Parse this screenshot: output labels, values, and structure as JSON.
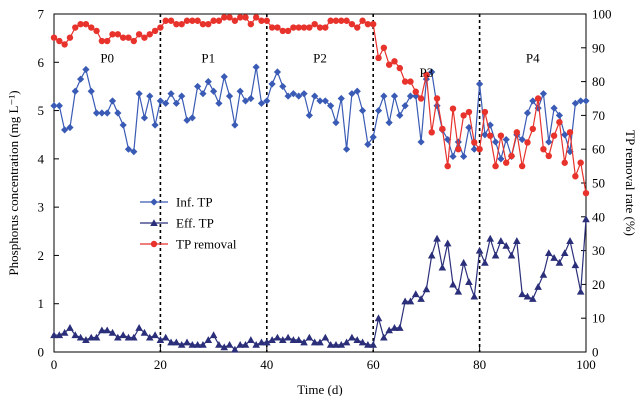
{
  "chart_data": {
    "type": "line",
    "xlabel": "Time (d)",
    "ylabel_left": "Phosphorus concentration (mg L⁻¹)",
    "ylabel_right": "TP removal rate (%)",
    "xlim": [
      0,
      100
    ],
    "ylim_left": [
      0,
      7
    ],
    "ylim_right": [
      0,
      100
    ],
    "x_ticks": [
      "0",
      "20",
      "40",
      "60",
      "80",
      "100"
    ],
    "y_ticks_left": [
      "0",
      "1",
      "2",
      "3",
      "4",
      "5",
      "6",
      "7"
    ],
    "y_ticks_right": [
      "0",
      "10",
      "20",
      "30",
      "40",
      "50",
      "60",
      "70",
      "80",
      "90",
      "100"
    ],
    "phase_dividers": [
      20,
      40,
      60,
      80
    ],
    "phase_labels": [
      {
        "text": "P0",
        "x": 10,
        "y": 6.1
      },
      {
        "text": "P1",
        "x": 29,
        "y": 6.1
      },
      {
        "text": "P2",
        "x": 50,
        "y": 6.1
      },
      {
        "text": "P3",
        "x": 70,
        "y": 5.8
      },
      {
        "text": "P4",
        "x": 90,
        "y": 6.1
      }
    ],
    "legend_position": "center-left",
    "series": [
      {
        "name": "Inf. TP",
        "axis": "left",
        "marker": "diamond",
        "color": "#3a5bb5",
        "x": [
          0,
          1,
          2,
          3,
          4,
          5,
          6,
          7,
          8,
          9,
          10,
          11,
          12,
          13,
          14,
          15,
          16,
          17,
          18,
          19,
          20,
          21,
          22,
          23,
          24,
          25,
          26,
          27,
          28,
          29,
          30,
          31,
          32,
          33,
          34,
          35,
          36,
          37,
          38,
          39,
          40,
          41,
          42,
          43,
          44,
          45,
          46,
          47,
          48,
          49,
          50,
          51,
          52,
          53,
          54,
          55,
          56,
          57,
          58,
          59,
          60,
          61,
          62,
          63,
          64,
          65,
          66,
          67,
          68,
          69,
          70,
          71,
          72,
          73,
          74,
          75,
          76,
          77,
          78,
          79,
          80,
          81,
          82,
          83,
          84,
          85,
          86,
          87,
          88,
          89,
          90,
          91,
          92,
          93,
          94,
          95,
          96,
          97,
          98,
          99,
          100
        ],
        "y": [
          5.1,
          5.1,
          4.6,
          4.65,
          5.4,
          5.65,
          5.85,
          5.4,
          4.95,
          4.95,
          4.95,
          5.2,
          4.95,
          4.7,
          4.2,
          4.15,
          5.35,
          4.85,
          5.3,
          4.7,
          5.2,
          5.15,
          5.35,
          5.15,
          5.3,
          4.8,
          4.85,
          5.5,
          5.35,
          5.6,
          5.4,
          5.15,
          5.7,
          5.3,
          4.7,
          5.4,
          5.2,
          5.25,
          5.9,
          5.15,
          5.2,
          5.55,
          5.8,
          5.5,
          5.3,
          5.35,
          5.3,
          5.35,
          4.9,
          5.3,
          5.2,
          5.2,
          5.1,
          4.75,
          5.25,
          4.2,
          5.35,
          5.4,
          5.0,
          4.3,
          4.45,
          5.0,
          5.3,
          4.75,
          5.3,
          4.9,
          5.1,
          5.3,
          5.3,
          4.35,
          5.65,
          5.8,
          5.1,
          4.6,
          4.4,
          4.05,
          4.35,
          4.05,
          4.65,
          4.2,
          5.55,
          4.5,
          4.7,
          4.35,
          4.0,
          4.4,
          4.05,
          4.5,
          4.4,
          4.95,
          5.2,
          5.05,
          5.35,
          4.35,
          5.05,
          4.9,
          4.5,
          4.15,
          5.15,
          5.2,
          5.2
        ]
      },
      {
        "name": "Eff. TP",
        "axis": "left",
        "marker": "triangle",
        "color": "#2b2f7a",
        "x": [
          0,
          1,
          2,
          3,
          4,
          5,
          6,
          7,
          8,
          9,
          10,
          11,
          12,
          13,
          14,
          15,
          16,
          17,
          18,
          19,
          20,
          21,
          22,
          23,
          24,
          25,
          26,
          27,
          28,
          29,
          30,
          31,
          32,
          33,
          34,
          35,
          36,
          37,
          38,
          39,
          40,
          41,
          42,
          43,
          44,
          45,
          46,
          47,
          48,
          49,
          50,
          51,
          52,
          53,
          54,
          55,
          56,
          57,
          58,
          59,
          60,
          61,
          62,
          63,
          64,
          65,
          66,
          67,
          68,
          69,
          70,
          71,
          72,
          73,
          74,
          75,
          76,
          77,
          78,
          79,
          80,
          81,
          82,
          83,
          84,
          85,
          86,
          87,
          88,
          89,
          90,
          91,
          92,
          93,
          94,
          95,
          96,
          97,
          98,
          99,
          100
        ],
        "y": [
          0.35,
          0.35,
          0.4,
          0.5,
          0.35,
          0.3,
          0.25,
          0.3,
          0.3,
          0.45,
          0.45,
          0.4,
          0.3,
          0.35,
          0.3,
          0.3,
          0.5,
          0.4,
          0.3,
          0.35,
          0.25,
          0.3,
          0.2,
          0.2,
          0.15,
          0.2,
          0.15,
          0.15,
          0.15,
          0.25,
          0.35,
          0.15,
          0.1,
          0.15,
          0.05,
          0.15,
          0.15,
          0.25,
          0.15,
          0.2,
          0.2,
          0.25,
          0.3,
          0.25,
          0.3,
          0.25,
          0.25,
          0.2,
          0.3,
          0.2,
          0.2,
          0.3,
          0.15,
          0.15,
          0.15,
          0.2,
          0.3,
          0.25,
          0.2,
          0.15,
          0.15,
          0.7,
          0.3,
          0.45,
          0.5,
          0.5,
          1.05,
          1.05,
          1.2,
          1.1,
          1.3,
          2.0,
          2.35,
          1.75,
          2.25,
          1.4,
          1.25,
          1.85,
          1.45,
          1.15,
          2.1,
          1.85,
          2.35,
          2.0,
          2.3,
          2.2,
          2.0,
          2.3,
          1.2,
          1.15,
          1.1,
          1.35,
          1.6,
          2.05,
          1.95,
          1.85,
          2.05,
          2.3,
          1.8,
          1.25,
          2.75
        ]
      },
      {
        "name": "TP removal",
        "axis": "right",
        "marker": "circle",
        "color": "#e8322c",
        "x": [
          0,
          1,
          2,
          3,
          4,
          5,
          6,
          7,
          8,
          9,
          10,
          11,
          12,
          13,
          14,
          15,
          16,
          17,
          18,
          19,
          20,
          21,
          22,
          23,
          24,
          25,
          26,
          27,
          28,
          29,
          30,
          31,
          32,
          33,
          34,
          35,
          36,
          37,
          38,
          39,
          40,
          41,
          42,
          43,
          44,
          45,
          46,
          47,
          48,
          49,
          50,
          51,
          52,
          53,
          54,
          55,
          56,
          57,
          58,
          59,
          60,
          61,
          62,
          63,
          64,
          65,
          66,
          67,
          68,
          69,
          70,
          71,
          72,
          73,
          74,
          75,
          76,
          77,
          78,
          79,
          80,
          81,
          82,
          83,
          84,
          85,
          86,
          87,
          88,
          89,
          90,
          91,
          92,
          93,
          94,
          95,
          96,
          97,
          98,
          99,
          100
        ],
        "y": [
          93,
          92,
          91,
          93,
          96,
          97,
          97,
          96,
          95,
          92,
          92,
          94,
          94,
          93,
          93,
          92,
          94,
          93,
          94,
          95,
          96,
          98,
          98,
          97,
          97,
          98,
          98,
          98,
          97,
          97,
          98,
          98,
          99,
          99,
          98,
          99,
          99,
          97,
          99,
          98,
          98,
          96,
          96,
          95,
          95,
          96,
          96,
          96,
          96,
          97,
          96,
          96,
          98,
          98,
          98,
          98,
          97,
          96,
          98,
          97,
          97,
          87,
          90,
          85,
          86,
          84,
          80,
          80,
          77,
          75,
          82,
          65,
          75,
          66,
          55,
          72,
          60,
          70,
          71,
          62,
          60,
          71,
          64,
          55,
          64,
          56,
          58,
          65,
          55,
          62,
          66,
          75,
          60,
          58,
          64,
          68,
          56,
          65,
          52,
          56,
          47
        ]
      }
    ]
  }
}
